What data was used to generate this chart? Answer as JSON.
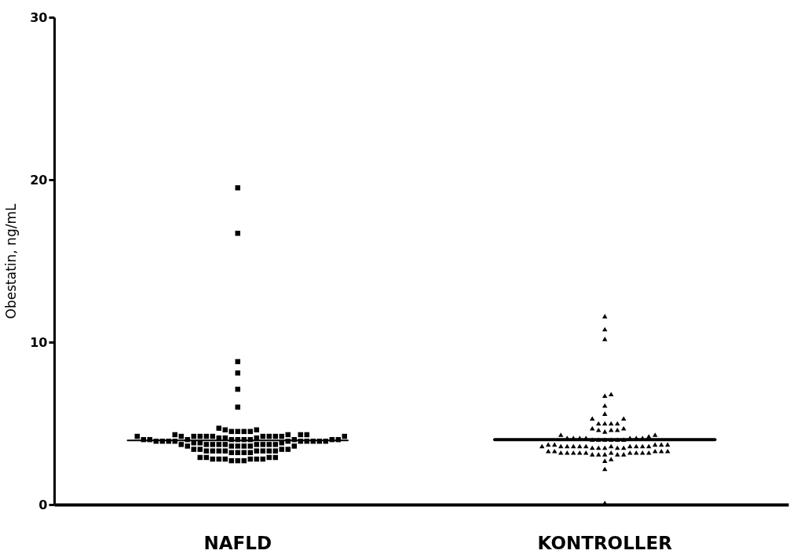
{
  "chart_data": {
    "type": "scatter",
    "ylabel": "Obestatin, ng/mL",
    "categories": [
      "NAFLD",
      "KONTROLLER"
    ],
    "ylim": [
      0,
      30
    ],
    "yticks": [
      0,
      10,
      20,
      30
    ],
    "series": [
      {
        "color": "#000000",
        "marker": "square",
        "x": [
          "NAFLD",
          "NAFLD",
          "NAFLD",
          "NAFLD",
          "NAFLD",
          "NAFLD",
          "NAFLD",
          "NAFLD",
          "NAFLD",
          "NAFLD",
          "NAFLD",
          "NAFLD",
          "NAFLD",
          "NAFLD",
          "NAFLD",
          "NAFLD",
          "NAFLD",
          "NAFLD",
          "NAFLD",
          "NAFLD",
          "NAFLD",
          "NAFLD",
          "NAFLD",
          "NAFLD",
          "NAFLD",
          "NAFLD",
          "NAFLD",
          "NAFLD",
          "NAFLD",
          "NAFLD",
          "NAFLD",
          "NAFLD",
          "NAFLD",
          "NAFLD",
          "NAFLD",
          "NAFLD",
          "NAFLD",
          "NAFLD",
          "NAFLD",
          "NAFLD",
          "NAFLD",
          "NAFLD",
          "NAFLD",
          "NAFLD",
          "NAFLD",
          "NAFLD",
          "NAFLD",
          "NAFLD",
          "NAFLD",
          "NAFLD",
          "NAFLD",
          "NAFLD",
          "NAFLD",
          "NAFLD",
          "NAFLD",
          "NAFLD",
          "NAFLD",
          "NAFLD",
          "NAFLD",
          "NAFLD",
          "NAFLD",
          "NAFLD",
          "NAFLD",
          "NAFLD",
          "NAFLD",
          "NAFLD",
          "NAFLD",
          "NAFLD",
          "NAFLD",
          "NAFLD",
          "NAFLD",
          "NAFLD",
          "NAFLD",
          "NAFLD",
          "NAFLD",
          "NAFLD",
          "NAFLD",
          "NAFLD",
          "NAFLD",
          "NAFLD",
          "NAFLD",
          "NAFLD",
          "NAFLD",
          "NAFLD",
          "NAFLD",
          "NAFLD",
          "NAFLD",
          "NAFLD",
          "NAFLD",
          "NAFLD",
          "NAFLD",
          "NAFLD",
          "NAFLD",
          "NAFLD",
          "NAFLD",
          "NAFLD",
          "NAFLD",
          "NAFLD"
        ],
        "values": [
          19.5,
          16.7,
          8.8,
          8.1,
          7.1,
          6.0,
          4.7,
          4.6,
          4.5,
          4.5,
          4.5,
          4.5,
          4.6,
          4.2,
          4.3,
          4.2,
          4.2,
          4.1,
          4.2,
          4.3,
          4.2,
          4.2,
          4.1,
          4.2,
          4.2,
          4.3,
          4.2,
          4.1,
          4.2,
          4.3,
          4.2,
          4.0,
          3.9,
          4.0,
          3.9,
          4.0,
          3.9,
          4.0,
          3.9,
          4.0,
          3.9,
          4.0,
          3.9,
          4.0,
          3.9,
          4.0,
          3.9,
          4.0,
          3.9,
          4.0,
          3.9,
          3.7,
          3.6,
          3.7,
          3.8,
          3.7,
          3.6,
          3.7,
          3.6,
          3.7,
          3.8,
          3.7,
          3.6,
          3.7,
          3.6,
          3.7,
          3.8,
          3.7,
          3.6,
          3.3,
          3.4,
          3.3,
          3.2,
          3.3,
          3.4,
          3.3,
          3.2,
          3.3,
          3.4,
          3.3,
          3.2,
          3.3,
          3.4,
          3.3,
          3.2,
          2.8,
          2.9,
          2.7,
          2.8,
          2.9,
          2.8,
          2.7,
          2.8,
          2.9,
          2.8,
          2.7,
          2.8,
          2.9
        ]
      },
      {
        "color": "#000000",
        "marker": "triangle",
        "x": [
          "KONTROLLER",
          "KONTROLLER",
          "KONTROLLER",
          "KONTROLLER",
          "KONTROLLER",
          "KONTROLLER",
          "KONTROLLER",
          "KONTROLLER",
          "KONTROLLER",
          "KONTROLLER",
          "KONTROLLER",
          "KONTROLLER",
          "KONTROLLER",
          "KONTROLLER",
          "KONTROLLER",
          "KONTROLLER",
          "KONTROLLER",
          "KONTROLLER",
          "KONTROLLER",
          "KONTROLLER",
          "KONTROLLER",
          "KONTROLLER",
          "KONTROLLER",
          "KONTROLLER",
          "KONTROLLER",
          "KONTROLLER",
          "KONTROLLER",
          "KONTROLLER",
          "KONTROLLER",
          "KONTROLLER",
          "KONTROLLER",
          "KONTROLLER",
          "KONTROLLER",
          "KONTROLLER",
          "KONTROLLER",
          "KONTROLLER",
          "KONTROLLER",
          "KONTROLLER",
          "KONTROLLER",
          "KONTROLLER",
          "KONTROLLER",
          "KONTROLLER",
          "KONTROLLER",
          "KONTROLLER",
          "KONTROLLER",
          "KONTROLLER",
          "KONTROLLER",
          "KONTROLLER",
          "KONTROLLER",
          "KONTROLLER",
          "KONTROLLER",
          "KONTROLLER",
          "KONTROLLER",
          "KONTROLLER",
          "KONTROLLER",
          "KONTROLLER",
          "KONTROLLER",
          "KONTROLLER",
          "KONTROLLER",
          "KONTROLLER",
          "KONTROLLER",
          "KONTROLLER",
          "KONTROLLER",
          "KONTROLLER",
          "KONTROLLER",
          "KONTROLLER",
          "KONTROLLER",
          "KONTROLLER",
          "KONTROLLER",
          "KONTROLLER",
          "KONTROLLER",
          "KONTROLLER",
          "KONTROLLER",
          "KONTROLLER",
          "KONTROLLER",
          "KONTROLLER",
          "KONTROLLER",
          "KONTROLLER",
          "KONTROLLER",
          "KONTROLLER"
        ],
        "values": [
          11.6,
          10.8,
          10.2,
          6.8,
          6.7,
          6.1,
          5.6,
          5.3,
          5.3,
          5.0,
          5.0,
          5.0,
          5.0,
          4.7,
          4.6,
          4.6,
          4.5,
          4.6,
          4.7,
          4.3,
          4.2,
          4.3,
          4.1,
          4.1,
          4.0,
          4.1,
          4.0,
          4.1,
          4.0,
          4.1,
          4.0,
          4.1,
          4.0,
          4.1,
          4.0,
          3.6,
          3.7,
          3.6,
          3.5,
          3.6,
          3.7,
          3.6,
          3.5,
          3.6,
          3.7,
          3.6,
          3.5,
          3.6,
          3.7,
          3.6,
          3.5,
          3.6,
          3.7,
          3.6,
          3.5,
          3.6,
          3.2,
          3.1,
          3.2,
          3.3,
          3.2,
          3.1,
          3.2,
          3.3,
          3.2,
          3.1,
          3.2,
          3.3,
          3.2,
          3.1,
          3.2,
          3.3,
          3.2,
          3.1,
          3.2,
          3.3,
          2.8,
          2.7,
          2.2,
          0.1
        ]
      }
    ],
    "ref_lines": [
      {
        "axis": "y",
        "value": 3.95,
        "line_style": "solid"
      },
      {
        "axis": "y",
        "value": 4.0,
        "line_style": "solid"
      }
    ]
  }
}
